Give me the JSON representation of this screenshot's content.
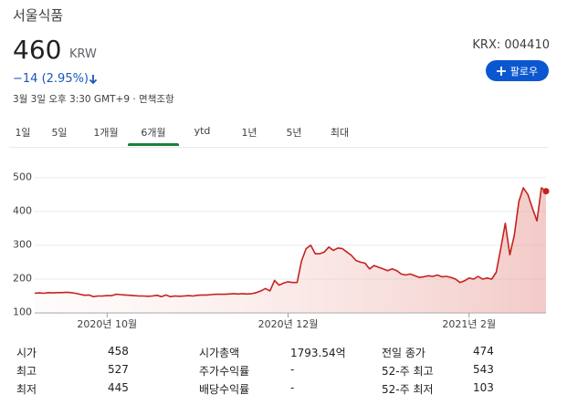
{
  "header": {
    "name": "서울식품",
    "price": "460",
    "currency": "KRW",
    "change": "−14 (2.95%)",
    "timestamp": "3월 3일 오후 3:30 GMT+9 · 면책조항",
    "ticker": "KRX: 004410",
    "follow": "팔로우"
  },
  "tabs": {
    "items": [
      "1일",
      "5일",
      "1개월",
      "6개월",
      "ytd",
      "1년",
      "5년",
      "최대"
    ],
    "active": 3
  },
  "chart_data": {
    "type": "line",
    "color": "#c5221f",
    "ylim": [
      100,
      540
    ],
    "yticks": [
      100,
      200,
      300,
      400,
      500
    ],
    "grid": true,
    "xlim": [
      0,
      113
    ],
    "xticks": [
      {
        "value": 16,
        "label": "2020년 10월"
      },
      {
        "value": 56,
        "label": "2020년 12월"
      },
      {
        "value": 96,
        "label": "2021년 2월"
      }
    ],
    "values": [
      158,
      159,
      158,
      160,
      159,
      160,
      160,
      161,
      160,
      158,
      155,
      152,
      153,
      148,
      150,
      150,
      151,
      151,
      155,
      154,
      153,
      152,
      151,
      150,
      150,
      149,
      150,
      152,
      148,
      153,
      148,
      150,
      149,
      150,
      151,
      150,
      152,
      153,
      153,
      154,
      155,
      155,
      155,
      156,
      157,
      156,
      157,
      156,
      157,
      160,
      165,
      172,
      165,
      196,
      182,
      188,
      192,
      190,
      190,
      255,
      290,
      300,
      275,
      275,
      280,
      295,
      285,
      292,
      290,
      280,
      270,
      255,
      250,
      247,
      230,
      240,
      235,
      230,
      225,
      230,
      225,
      215,
      212,
      215,
      210,
      205,
      207,
      210,
      208,
      212,
      207,
      208,
      205,
      200,
      190,
      195,
      203,
      200,
      208,
      200,
      203,
      200,
      220,
      290,
      365,
      272,
      330,
      430,
      470,
      450,
      410,
      372,
      470,
      460
    ]
  },
  "stats": {
    "rows": [
      [
        "시가",
        "458",
        "시가총액",
        "1793.54억",
        "전일 종가",
        "474"
      ],
      [
        "최고",
        "527",
        "주가수익률",
        "-",
        "52-주 최고",
        "543"
      ],
      [
        "최저",
        "445",
        "배당수익률",
        "-",
        "52-주 최저",
        "103"
      ]
    ]
  }
}
